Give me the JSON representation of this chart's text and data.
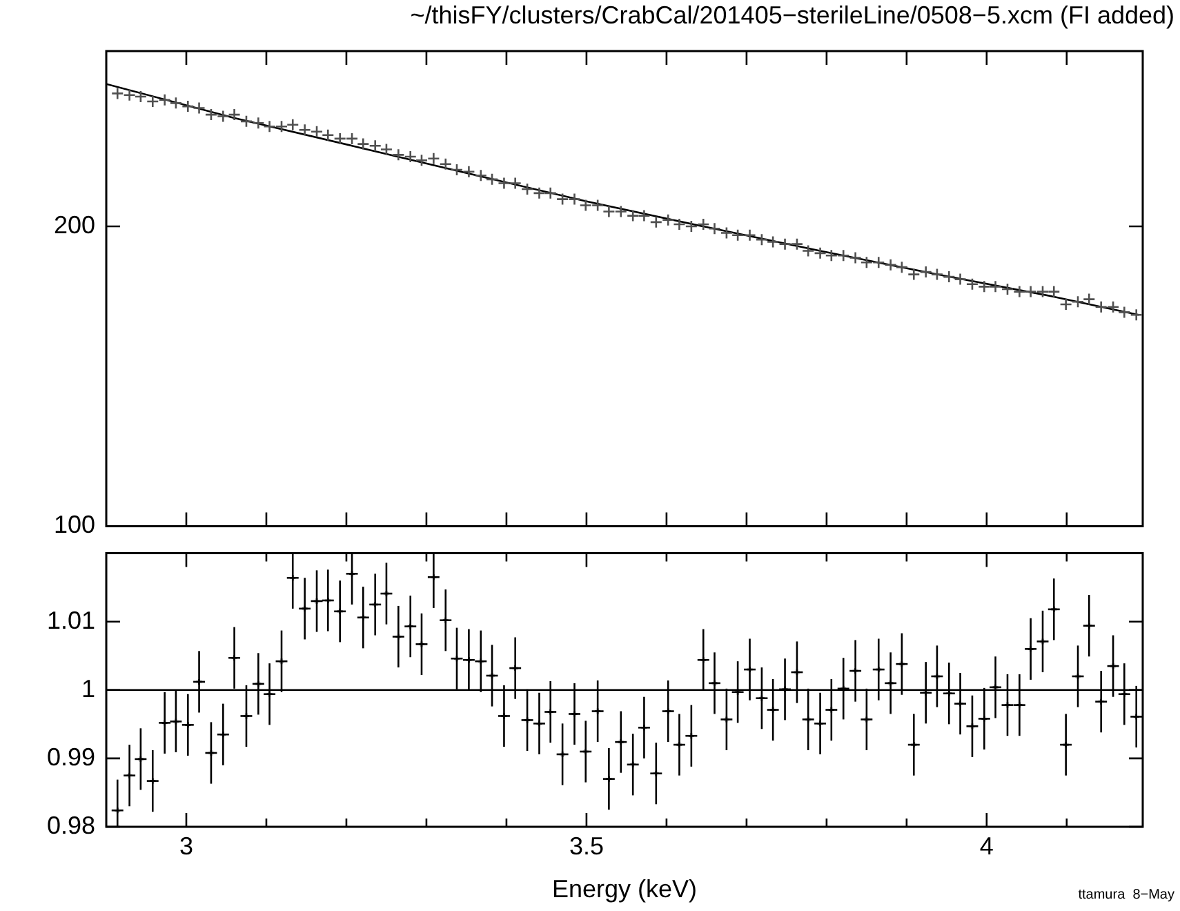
{
  "chart_data": [
    {
      "type": "scatter",
      "title": "~/thisFY/clusters/CrabCal/201405−sterileLine/0508−5.xcm (FI added)",
      "log": true,
      "tick_labels": "y",
      "legend": false,
      "xlim": [
        2.9,
        4.195
      ],
      "xticks": [
        {
          "value": 3,
          "label": null
        },
        {
          "value": 3.1,
          "label": null
        },
        {
          "value": 3.2,
          "label": null
        },
        {
          "value": 3.3,
          "label": null
        },
        {
          "value": 3.4,
          "label": null
        },
        {
          "value": 3.5,
          "label": null
        },
        {
          "value": 3.6,
          "label": null
        },
        {
          "value": 3.7,
          "label": null
        },
        {
          "value": 3.8,
          "label": null
        },
        {
          "value": 3.9,
          "label": null
        },
        {
          "value": 4,
          "label": null
        },
        {
          "value": 4.1,
          "label": null
        }
      ],
      "ylim": [
        100,
        300
      ],
      "yticks": [
        100,
        200
      ],
      "series": [
        {
          "type": "scatter",
          "marker": "cross",
          "color": "#505050",
          "x": [
            2.914,
            2.929,
            2.943,
            2.958,
            2.973,
            2.987,
            3.002,
            3.016,
            3.031,
            3.046,
            3.06,
            3.075,
            3.09,
            3.104,
            3.119,
            3.133,
            3.148,
            3.163,
            3.177,
            3.192,
            3.207,
            3.221,
            3.236,
            3.25,
            3.265,
            3.28,
            3.294,
            3.309,
            3.324,
            3.338,
            3.353,
            3.368,
            3.382,
            3.397,
            3.411,
            3.426,
            3.441,
            3.455,
            3.47,
            3.485,
            3.499,
            3.514,
            3.528,
            3.543,
            3.558,
            3.572,
            3.587,
            3.602,
            3.616,
            3.631,
            3.646,
            3.66,
            3.675,
            3.689,
            3.704,
            3.719,
            3.733,
            3.748,
            3.763,
            3.777,
            3.792,
            3.806,
            3.821,
            3.836,
            3.85,
            3.865,
            3.88,
            3.894,
            3.909,
            3.924,
            3.938,
            3.953,
            3.967,
            3.982,
            3.997,
            4.011,
            4.026,
            4.041,
            4.055,
            4.07,
            4.084,
            4.099,
            4.114,
            4.128,
            4.143,
            4.158,
            4.172,
            4.187
          ],
          "values": [
            272,
            271,
            270,
            267,
            268,
            266,
            264,
            263,
            259,
            258,
            259,
            255,
            254,
            252,
            252,
            253,
            250,
            249,
            247,
            245,
            245,
            242,
            241,
            239,
            236,
            235,
            233,
            234,
            231,
            228,
            227,
            225,
            223,
            221,
            221,
            218,
            216,
            216,
            213,
            213,
            210,
            210,
            207,
            207,
            205,
            205,
            202,
            203,
            201,
            200,
            201,
            199,
            197,
            196,
            196,
            194,
            193,
            192,
            192,
            189,
            188,
            187,
            187,
            186,
            184,
            184,
            183,
            182,
            179,
            180,
            179,
            178,
            177,
            175,
            174,
            174,
            173,
            172,
            172,
            172,
            172,
            167,
            168,
            169,
            166,
            166,
            164,
            163
          ]
        },
        {
          "type": "line",
          "marker": "none",
          "color": "#000000",
          "x": [
            2.9,
            3.06,
            3.207,
            3.353,
            3.499,
            3.646,
            3.792,
            3.938,
            4.084,
            4.19
          ],
          "values": [
            278,
            257,
            241,
            226,
            212,
            200,
            189,
            179,
            170,
            163
          ]
        }
      ]
    },
    {
      "type": "scatter",
      "xlabel": "Energy (keV)",
      "annotations": [
        "ttamura  8−May"
      ],
      "marker": "cross",
      "legend": false,
      "xlim": [
        2.9,
        4.195
      ],
      "xticks": [
        3,
        {
          "value": 3.1,
          "label": null
        },
        {
          "value": 3.2,
          "label": null
        },
        {
          "value": 3.3,
          "label": null
        },
        {
          "value": 3.4,
          "label": null
        },
        3.5,
        {
          "value": 3.6,
          "label": null
        },
        {
          "value": 3.7,
          "label": null
        },
        {
          "value": 3.8,
          "label": null
        },
        {
          "value": 3.9,
          "label": null
        },
        4,
        {
          "value": 4.1,
          "label": null
        }
      ],
      "ylim": [
        0.98,
        1.02
      ],
      "yticks": [
        0.98,
        0.99,
        1,
        1.01
      ],
      "ref_lines": [
        {
          "axis": "y",
          "value": 1,
          "color": "#000000"
        }
      ],
      "series": [
        {
          "type": "scatter",
          "color": "#000000",
          "x": [
            2.914,
            2.929,
            2.943,
            2.958,
            2.973,
            2.987,
            3.002,
            3.016,
            3.031,
            3.046,
            3.06,
            3.075,
            3.09,
            3.104,
            3.119,
            3.133,
            3.148,
            3.163,
            3.177,
            3.192,
            3.207,
            3.221,
            3.236,
            3.25,
            3.265,
            3.28,
            3.294,
            3.309,
            3.324,
            3.338,
            3.353,
            3.368,
            3.382,
            3.397,
            3.411,
            3.426,
            3.441,
            3.455,
            3.47,
            3.485,
            3.499,
            3.514,
            3.528,
            3.543,
            3.558,
            3.572,
            3.587,
            3.602,
            3.616,
            3.631,
            3.646,
            3.66,
            3.675,
            3.689,
            3.704,
            3.719,
            3.733,
            3.748,
            3.763,
            3.777,
            3.792,
            3.806,
            3.821,
            3.836,
            3.85,
            3.865,
            3.88,
            3.894,
            3.909,
            3.924,
            3.938,
            3.953,
            3.967,
            3.982,
            3.997,
            4.011,
            4.026,
            4.041,
            4.055,
            4.07,
            4.084,
            4.099,
            4.114,
            4.128,
            4.143,
            4.158,
            4.172,
            4.187
          ],
          "values": [
            0.9824,
            0.9875,
            0.9899,
            0.9867,
            0.9952,
            0.9954,
            0.9949,
            1.0012,
            0.9908,
            0.9935,
            1.0047,
            0.9962,
            1.0009,
            0.9994,
            1.0042,
            1.0164,
            1.0119,
            1.013,
            1.0131,
            1.0115,
            1.017,
            1.0106,
            1.0125,
            1.0141,
            1.0078,
            1.0093,
            1.0067,
            1.0165,
            1.0102,
            1.0046,
            1.0044,
            1.0042,
            1.0021,
            0.9962,
            1.0032,
            0.9956,
            0.9951,
            0.9968,
            0.9906,
            0.9965,
            0.991,
            0.9969,
            0.987,
            0.9924,
            0.9891,
            0.9945,
            0.9878,
            0.9969,
            0.992,
            0.9933,
            1.0044,
            1.001,
            0.9957,
            0.9997,
            1.003,
            0.9988,
            0.9971,
            1.0001,
            1.0026,
            0.9957,
            0.9951,
            0.9971,
            1.0002,
            1.0028,
            0.9957,
            1.003,
            1.001,
            1.0038,
            0.992,
            0.9996,
            1.002,
            0.9995,
            0.998,
            0.9947,
            0.9958,
            1.0004,
            0.9978,
            0.9978,
            1.006,
            1.0071,
            1.0118,
            0.992,
            1.002,
            1.0094,
            0.9983,
            1.0035,
            0.9994,
            0.9961
          ],
          "errors": [
            [
              0.98,
              0.9869
            ],
            0.0045,
            0.0045,
            0.0045,
            0.0045,
            0.0045,
            0.0045,
            0.0045,
            0.0045,
            0.0045,
            0.0045,
            0.0045,
            0.0045,
            0.0045,
            0.0045,
            [
              1.0119,
              1.02
            ],
            0.0045,
            0.0045,
            0.0045,
            0.0045,
            [
              1.0125,
              1.02
            ],
            0.0045,
            0.0045,
            0.0045,
            0.0045,
            0.0045,
            0.0045,
            [
              1.012,
              1.02
            ],
            0.0045,
            0.0045,
            0.0045,
            0.0045,
            0.0045,
            0.0045,
            0.0045,
            0.0045,
            0.0045,
            0.0045,
            0.0045,
            0.0045,
            0.0045,
            0.0045,
            0.0045,
            0.0045,
            0.0045,
            0.0045,
            0.0045,
            0.0045,
            0.0045,
            0.0045,
            0.0045,
            0.0045,
            0.0045,
            0.0045,
            0.0045,
            0.0045,
            0.0045,
            0.0045,
            0.0045,
            0.0045,
            0.0045,
            0.0045,
            0.0045,
            0.0045,
            0.0045,
            0.0045,
            0.0045,
            0.0045,
            0.0045,
            0.0045,
            0.0045,
            0.0045,
            0.0045,
            0.0045,
            0.0045,
            0.0045,
            0.0045,
            0.0045,
            0.0045,
            0.0045,
            0.0045,
            0.0045,
            0.0045,
            0.0045,
            0.0045,
            0.0045,
            0.0045,
            0.0045
          ],
          "xerrors": [
            0.0073,
            0.0073,
            0.0073,
            0.0073,
            0.0073,
            0.0073,
            0.0073,
            0.0073,
            0.0073,
            0.0073,
            0.0073,
            0.0073,
            0.0073,
            0.0073,
            0.0073,
            0.0073,
            0.0073,
            0.0073,
            0.0073,
            0.0073,
            0.0073,
            0.0073,
            0.0073,
            0.0073,
            0.0073,
            0.0073,
            0.0073,
            0.0073,
            0.0073,
            0.0073,
            0.0073,
            0.0073,
            0.0073,
            0.0073,
            0.0073,
            0.0073,
            0.0073,
            0.0073,
            0.0073,
            0.0073,
            0.0073,
            0.0073,
            0.0073,
            0.0073,
            0.0073,
            0.0073,
            0.0073,
            0.0073,
            0.0073,
            0.0073,
            0.0073,
            0.0073,
            0.0073,
            0.0073,
            0.0073,
            0.0073,
            0.0073,
            0.0073,
            0.0073,
            0.0073,
            0.0073,
            0.0073,
            0.0073,
            0.0073,
            0.0073,
            0.0073,
            0.0073,
            0.0073,
            0.0073,
            0.0073,
            0.0073,
            0.0073,
            0.0073,
            0.0073,
            0.0073,
            0.0073,
            0.0073,
            0.0073,
            0.0073,
            0.0073,
            0.0073,
            0.0073,
            0.0073,
            0.0073,
            0.0073,
            0.0073,
            0.0073,
            0.0073
          ]
        }
      ]
    }
  ]
}
